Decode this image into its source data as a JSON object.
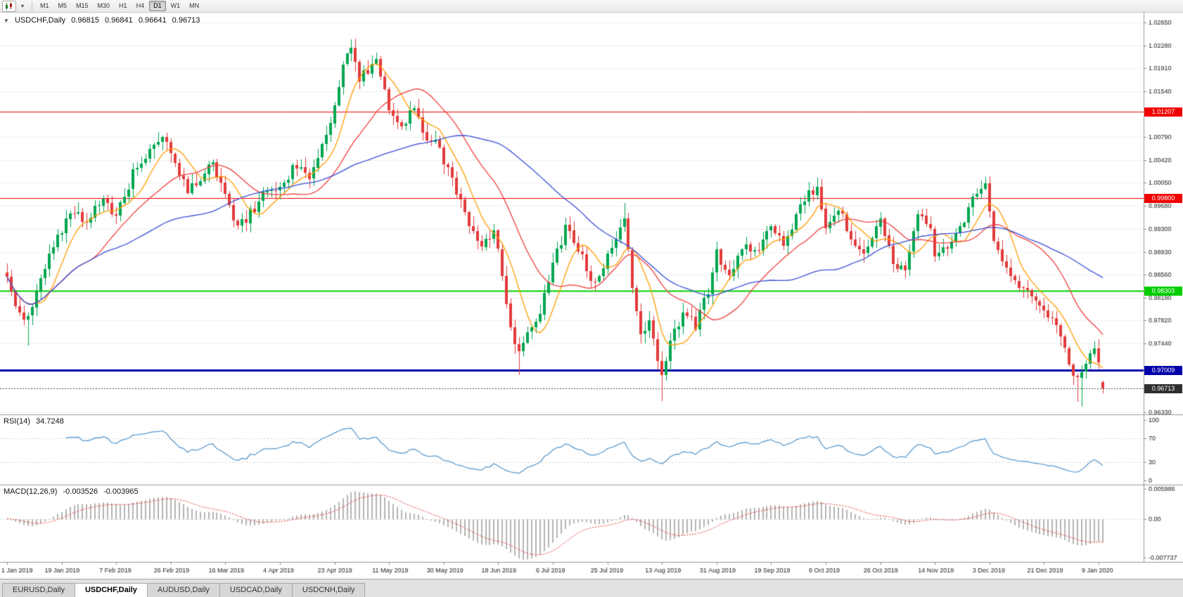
{
  "icons": {
    "collapse": "▼",
    "dropdown": "▾"
  },
  "toolbar": {
    "timeframes": [
      "M1",
      "M5",
      "M15",
      "M30",
      "H1",
      "H4",
      "D1",
      "W1",
      "MN"
    ],
    "active_timeframe": "D1"
  },
  "price_pane": {
    "title": {
      "symbol": "USDCHF,Daily",
      "open": "0.96815",
      "high": "0.96841",
      "low": "0.96641",
      "close": "0.96713"
    },
    "y_ticks": [
      "1.02650",
      "1.02280",
      "1.01910",
      "1.01540",
      "1.00790",
      "1.00420",
      "1.00050",
      "0.99680",
      "0.99300",
      "0.98930",
      "0.98560",
      "0.98190",
      "0.97820",
      "0.97440",
      "0.96330"
    ],
    "levels": [
      {
        "value": 1.01207,
        "label": "1.01207",
        "color": "#f20000",
        "width": 1
      },
      {
        "value": 0.998,
        "label": "0.99800",
        "color": "#f20000",
        "width": 1
      },
      {
        "value": 0.98303,
        "label": "0.98303",
        "color": "#00ce00",
        "width": 2
      },
      {
        "value": 0.97009,
        "label": "0.97009",
        "color": "#0000a8",
        "width": 3
      }
    ],
    "current_price": {
      "value": 0.96713,
      "label": "0.96713",
      "color": "#2f2f2f"
    },
    "price_min": 0.96295,
    "price_max": 1.0281
  },
  "rsi_pane": {
    "label": "RSI(14)",
    "value": "34.7248",
    "ticks": [
      "100",
      "70",
      "30",
      "0"
    ],
    "levels": [
      70,
      30
    ],
    "line_color": "#4f94cd"
  },
  "macd_pane": {
    "label": "MACD(12,26,9)",
    "value_main": "-0.003526",
    "value_signal": "-0.003965",
    "ticks": [
      "0.005986",
      "0.00",
      "-0.007737"
    ],
    "max": 0.005986,
    "min": -0.007737,
    "hist_color": "#b4b4b4",
    "signal_color": "#e03131"
  },
  "x_ticks": [
    "1 Jan 2019",
    "19 Jan 2019",
    "7 Feb 2019",
    "26 Feb 2019",
    "16 Mar 2019",
    "4 Apr 2019",
    "23 Apr 2019",
    "11 May 2019",
    "30 May 2019",
    "18 Jun 2019",
    "6 Jul 2019",
    "25 Jul 2019",
    "13 Aug 2019",
    "31 Aug 2019",
    "19 Sep 2019",
    "8 Oct 2019",
    "26 Oct 2019",
    "14 Nov 2019",
    "3 Dec 2019",
    "21 Dec 2019",
    "9 Jan 2020"
  ],
  "tabs": [
    {
      "label": "EURUSD,Daily",
      "active": false
    },
    {
      "label": "USDCHF,Daily",
      "active": true
    },
    {
      "label": "AUDUSD,Daily",
      "active": false
    },
    {
      "label": "USDCAD,Daily",
      "active": false
    },
    {
      "label": "USDCNH,Daily",
      "active": false
    }
  ],
  "chart_data": {
    "type": "candlestick",
    "symbol": "USDCHF",
    "timeframe": "Daily",
    "bar_count": 262,
    "days_per_xtick": 13,
    "up_color": "#00a651",
    "down_color": "#e23b3b",
    "close_waypoints": [
      [
        0,
        0.986
      ],
      [
        2,
        0.98
      ],
      [
        5,
        0.9785
      ],
      [
        9,
        0.987
      ],
      [
        13,
        0.993
      ],
      [
        16,
        0.996
      ],
      [
        19,
        0.9935
      ],
      [
        23,
        0.9985
      ],
      [
        26,
        0.995
      ],
      [
        30,
        1.002
      ],
      [
        34,
        1.006
      ],
      [
        37,
        1.0085
      ],
      [
        40,
        1.004
      ],
      [
        43,
        0.999
      ],
      [
        46,
        1.0015
      ],
      [
        49,
        1.004
      ],
      [
        52,
        0.999
      ],
      [
        55,
        0.993
      ],
      [
        58,
        0.9955
      ],
      [
        61,
        0.9985
      ],
      [
        65,
        1.0
      ],
      [
        69,
        1.0035
      ],
      [
        72,
        1.0015
      ],
      [
        75,
        1.006
      ],
      [
        78,
        1.013
      ],
      [
        80,
        1.019
      ],
      [
        82,
        1.0225
      ],
      [
        84,
        1.017
      ],
      [
        86,
        1.019
      ],
      [
        88,
        1.0205
      ],
      [
        91,
        1.013
      ],
      [
        94,
        1.01
      ],
      [
        97,
        1.0125
      ],
      [
        100,
        1.008
      ],
      [
        103,
        1.006
      ],
      [
        104,
        1.004
      ],
      [
        107,
        0.999
      ],
      [
        110,
        0.994
      ],
      [
        113,
        0.99
      ],
      [
        116,
        0.993
      ],
      [
        118,
        0.986
      ],
      [
        120,
        0.977
      ],
      [
        122,
        0.9725
      ],
      [
        124,
        0.976
      ],
      [
        127,
        0.98
      ],
      [
        130,
        0.987
      ],
      [
        133,
        0.993
      ],
      [
        136,
        0.99
      ],
      [
        139,
        0.9845
      ],
      [
        142,
        0.987
      ],
      [
        145,
        0.992
      ],
      [
        147,
        0.995
      ],
      [
        149,
        0.983
      ],
      [
        151,
        0.976
      ],
      [
        153,
        0.9775
      ],
      [
        155,
        0.9715
      ],
      [
        156,
        0.969
      ],
      [
        158,
        0.9745
      ],
      [
        161,
        0.979
      ],
      [
        164,
        0.9775
      ],
      [
        167,
        0.983
      ],
      [
        169,
        0.989
      ],
      [
        172,
        0.9855
      ],
      [
        175,
        0.99
      ],
      [
        178,
        0.989
      ],
      [
        182,
        0.9935
      ],
      [
        185,
        0.9905
      ],
      [
        188,
        0.995
      ],
      [
        191,
        0.9985
      ],
      [
        193,
        1.0
      ],
      [
        195,
        0.9935
      ],
      [
        198,
        0.9965
      ],
      [
        201,
        0.992
      ],
      [
        204,
        0.989
      ],
      [
        207,
        0.993
      ],
      [
        208,
        0.995
      ],
      [
        211,
        0.987
      ],
      [
        214,
        0.986
      ],
      [
        217,
        0.995
      ],
      [
        220,
        0.993
      ],
      [
        221,
        0.989
      ],
      [
        224,
        0.9905
      ],
      [
        227,
        0.9935
      ],
      [
        230,
        0.9975
      ],
      [
        233,
        1.0
      ],
      [
        235,
        0.9905
      ],
      [
        238,
        0.987
      ],
      [
        241,
        0.984
      ],
      [
        244,
        0.9825
      ],
      [
        247,
        0.98
      ],
      [
        250,
        0.977
      ],
      [
        253,
        0.9715
      ],
      [
        255,
        0.9685
      ],
      [
        257,
        0.9715
      ],
      [
        259,
        0.974
      ],
      [
        261,
        0.96713
      ]
    ],
    "wick_overrides": {
      "5": {
        "low": 0.9741
      },
      "82": {
        "high": 1.0238
      },
      "122": {
        "low": 0.9693
      },
      "147": {
        "high": 0.9972
      },
      "156": {
        "low": 0.9651
      },
      "255": {
        "low": 0.965
      },
      "256": {
        "low": 0.9642
      },
      "259": {
        "high": 0.9748
      },
      "261": {
        "low": 0.96641
      }
    },
    "last_bar": {
      "open": 0.96815,
      "high": 0.96841,
      "low": 0.96641,
      "close": 0.96713
    },
    "ma_lines": [
      {
        "period": 8,
        "color": "#ff9d00"
      },
      {
        "period": 21,
        "color": "#f03e3e"
      },
      {
        "period": 50,
        "color": "#3a4fd8"
      }
    ],
    "indicators": {
      "rsi_period": 14,
      "macd": [
        12,
        26,
        9
      ]
    }
  }
}
